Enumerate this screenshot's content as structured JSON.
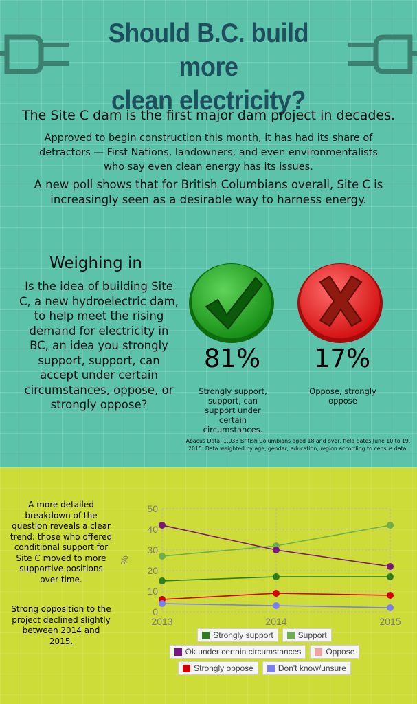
{
  "header": {
    "title_line1": "Should B.C. build more",
    "title_line2": "clean electricity?",
    "lead": "The Site C dam is the first major dam project in decades.",
    "para1": "Approved to begin construction this month, it has had its share of detractors — First Nations, landowners, and even environmentalists who say even clean energy has its issues.",
    "para2": "A new poll shows that for British Columbians overall, Site C is increasingly seen as a desirable way to harness energy.",
    "plug_icon": "electric-plug-icon"
  },
  "weighing": {
    "title": "Weighing in",
    "question": "Is the idea of building Site C, a new hydroelectric dam, to help meet the rising demand for electricity in BC, an idea you strongly support, support, can accept under certain circumstances, oppose, or strongly oppose?",
    "support": {
      "percent": "81%",
      "caption": "Strongly support, support, can support under certain circumstances.",
      "icon": "check-mark-icon",
      "color": "#22a31e"
    },
    "oppose": {
      "percent": "17%",
      "caption": "Oppose, strongly oppose",
      "icon": "x-mark-icon",
      "color": "#e8191b"
    },
    "source": "Abacus Data, 1,038 British Columbians aged 18 and over, field dates June 10 to 19, 2015. Data weighted by age, gender, education, region according to census data."
  },
  "breakdown": {
    "text1": "A more detailed breakdown of the question reveals a clear trend: those who offered conditional support for Site C moved to more supportive positions over time.",
    "text2": "Strong opposition to the project declined slightly between 2014 and 2015."
  },
  "chart_data": {
    "type": "line",
    "x": [
      "2013",
      "2014",
      "2015"
    ],
    "ylabel": "%",
    "xlabel": "",
    "ylim": [
      0,
      50
    ],
    "yticks": [
      0,
      10,
      20,
      30,
      40,
      50
    ],
    "grid": true,
    "legend_position": "bottom",
    "series": [
      {
        "name": "Strongly support",
        "values": [
          15,
          17,
          17
        ],
        "color": "#2e7d1e"
      },
      {
        "name": "Support",
        "values": [
          27,
          32,
          42
        ],
        "color": "#6ab04c"
      },
      {
        "name": "Ok under certain circumstances",
        "values": [
          42,
          30,
          22
        ],
        "color": "#7b1580"
      },
      {
        "name": "Oppose",
        "values": [
          null,
          null,
          null
        ],
        "color": "#f2a0a0"
      },
      {
        "name": "Strongly oppose",
        "values": [
          6,
          9,
          8
        ],
        "color": "#d40000"
      },
      {
        "name": "Don't know/unsure",
        "values": [
          4,
          3,
          2
        ],
        "color": "#7a7ef0"
      }
    ]
  }
}
